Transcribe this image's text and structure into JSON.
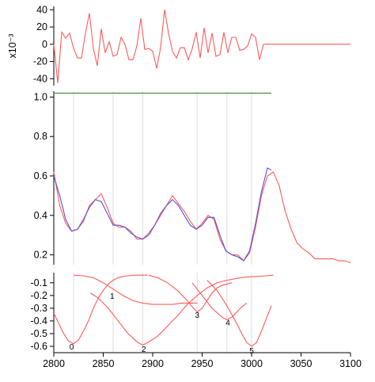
{
  "chart_data": [
    {
      "type": "line",
      "panel": "residual",
      "ylabel": "x10⁻³",
      "ylim": [
        -48,
        44
      ],
      "yticks": [
        -40,
        -20,
        0,
        20,
        40
      ],
      "ytick_labels": [
        "-40",
        "-20",
        "0",
        "20",
        "40"
      ],
      "series": [
        {
          "color": "#ff5a5a",
          "x": [
            2800,
            2804,
            2808,
            2812,
            2816,
            2820,
            2824,
            2828,
            2832,
            2836,
            2840,
            2844,
            2848,
            2852,
            2856,
            2860,
            2864,
            2868,
            2872,
            2876,
            2880,
            2884,
            2888,
            2892,
            2896,
            2900,
            2904,
            2908,
            2912,
            2916,
            2920,
            2924,
            2928,
            2932,
            2936,
            2940,
            2944,
            2948,
            2952,
            2956,
            2960,
            2964,
            2968,
            2972,
            2976,
            2980,
            2984,
            2988,
            2992,
            2996,
            3000,
            3004,
            3008,
            3012,
            3016,
            3020,
            3024,
            3100
          ],
          "y": [
            0,
            -45,
            14,
            7,
            13,
            -5,
            -16,
            -16,
            13,
            36,
            -5,
            -25,
            18,
            -10,
            3,
            -14,
            -12,
            8,
            0,
            -18,
            -18,
            -2,
            30,
            -6,
            -5,
            -8,
            -28,
            -4,
            40,
            13,
            -8,
            -16,
            -4,
            -4,
            -18,
            -5,
            14,
            -16,
            19,
            -10,
            13,
            -14,
            -12,
            14,
            -10,
            8,
            8,
            -7,
            -6,
            -2,
            12,
            8,
            -18,
            0,
            0,
            0,
            0,
            0
          ]
        }
      ]
    },
    {
      "type": "line",
      "panel": "fit",
      "xlim": [
        2800,
        3100
      ],
      "ylim": [
        0.15,
        1.03
      ],
      "yticks": [
        0.2,
        0.4,
        0.6,
        0.8,
        1.0
      ],
      "ytick_labels": [
        "0.2",
        "0.4",
        "0.6",
        "0.8",
        "1.0"
      ],
      "series": [
        {
          "color": "#2a7a2a",
          "x": [
            2800,
            3020
          ],
          "y": [
            1.02,
            1.02
          ]
        },
        {
          "color": "#ff5a5a",
          "x": [
            2800,
            2806,
            2812,
            2818,
            2824,
            2830,
            2836,
            2842,
            2848,
            2854,
            2860,
            2866,
            2872,
            2878,
            2884,
            2890,
            2896,
            2902,
            2908,
            2914,
            2920,
            2926,
            2932,
            2938,
            2944,
            2950,
            2956,
            2962,
            2968,
            2974,
            2980,
            2986,
            2992,
            2998,
            3004,
            3010,
            3016,
            3022,
            3028,
            3034,
            3040,
            3046,
            3052,
            3058,
            3064,
            3070,
            3076,
            3082,
            3088,
            3094,
            3100
          ],
          "y": [
            0.62,
            0.45,
            0.36,
            0.32,
            0.33,
            0.37,
            0.45,
            0.48,
            0.51,
            0.44,
            0.36,
            0.34,
            0.34,
            0.32,
            0.28,
            0.28,
            0.31,
            0.35,
            0.4,
            0.45,
            0.5,
            0.46,
            0.42,
            0.37,
            0.33,
            0.36,
            0.4,
            0.38,
            0.28,
            0.22,
            0.2,
            0.2,
            0.17,
            0.21,
            0.34,
            0.5,
            0.6,
            0.62,
            0.55,
            0.42,
            0.33,
            0.26,
            0.23,
            0.21,
            0.18,
            0.18,
            0.18,
            0.18,
            0.17,
            0.17,
            0.16
          ]
        },
        {
          "color": "#5a4fd6",
          "x": [
            2800,
            2806,
            2812,
            2818,
            2824,
            2830,
            2836,
            2842,
            2848,
            2854,
            2860,
            2866,
            2872,
            2878,
            2884,
            2890,
            2896,
            2902,
            2908,
            2914,
            2920,
            2926,
            2932,
            2938,
            2944,
            2950,
            2956,
            2962,
            2968,
            2974,
            2980,
            2986,
            2992,
            2998,
            3004,
            3010,
            3016,
            3020
          ],
          "y": [
            0.6,
            0.5,
            0.38,
            0.32,
            0.33,
            0.38,
            0.44,
            0.48,
            0.47,
            0.41,
            0.35,
            0.35,
            0.34,
            0.31,
            0.29,
            0.28,
            0.3,
            0.35,
            0.41,
            0.45,
            0.48,
            0.45,
            0.4,
            0.35,
            0.33,
            0.35,
            0.39,
            0.39,
            0.3,
            0.22,
            0.2,
            0.19,
            0.17,
            0.22,
            0.36,
            0.52,
            0.64,
            0.63
          ]
        }
      ]
    },
    {
      "type": "line",
      "panel": "components",
      "ylim": [
        -0.65,
        -0.02
      ],
      "yticks": [
        -0.1,
        -0.2,
        -0.3,
        -0.4,
        -0.5,
        -0.6
      ],
      "ytick_labels": [
        "-0.1",
        "-0.2",
        "-0.3",
        "-0.4",
        "-0.5",
        "-0.6"
      ],
      "xticks": [
        2800,
        2850,
        2900,
        2950,
        3000,
        3050,
        3100
      ],
      "xtick_labels": [
        "2800",
        "2850",
        "2900",
        "2950",
        "3000",
        "3050",
        "3100"
      ],
      "annotations": [
        {
          "text": "0",
          "x": 2818,
          "y": -0.6
        },
        {
          "text": "1",
          "x": 2859,
          "y": -0.2
        },
        {
          "text": "2",
          "x": 2891,
          "y": -0.62
        },
        {
          "text": "3",
          "x": 2945,
          "y": -0.35
        },
        {
          "text": "4",
          "x": 2976,
          "y": -0.41
        },
        {
          "text": "5",
          "x": 3000,
          "y": -0.63
        }
      ],
      "series": [
        {
          "color": "#ff5a5a",
          "x": [
            2800,
            2805,
            2810,
            2815,
            2820,
            2825,
            2830,
            2835,
            2840,
            2845,
            2850,
            2855,
            2860,
            2865,
            2870,
            2875,
            2880,
            2885,
            2890,
            2895
          ],
          "y": [
            -0.34,
            -0.42,
            -0.5,
            -0.56,
            -0.58,
            -0.55,
            -0.48,
            -0.4,
            -0.3,
            -0.22,
            -0.16,
            -0.11,
            -0.08,
            -0.06,
            -0.05,
            -0.045,
            -0.04,
            -0.04,
            -0.04,
            -0.04
          ]
        },
        {
          "color": "#ff5a5a",
          "x": [
            2820,
            2830,
            2840,
            2850,
            2860,
            2870,
            2880,
            2890,
            2900,
            2910,
            2920,
            2930,
            2940,
            2945
          ],
          "y": [
            -0.04,
            -0.045,
            -0.06,
            -0.1,
            -0.15,
            -0.2,
            -0.24,
            -0.26,
            -0.27,
            -0.27,
            -0.27,
            -0.26,
            -0.26,
            -0.26
          ]
        },
        {
          "color": "#ff5a5a",
          "x": [
            2837,
            2845,
            2855,
            2865,
            2875,
            2885,
            2890,
            2895,
            2905,
            2915,
            2925,
            2935,
            2945,
            2955,
            2965,
            2975,
            2985,
            2995,
            3005,
            3015,
            3022
          ],
          "y": [
            -0.18,
            -0.22,
            -0.3,
            -0.4,
            -0.5,
            -0.57,
            -0.59,
            -0.57,
            -0.52,
            -0.44,
            -0.36,
            -0.27,
            -0.2,
            -0.14,
            -0.1,
            -0.08,
            -0.065,
            -0.055,
            -0.05,
            -0.045,
            -0.04
          ]
        },
        {
          "color": "#ff5a5a",
          "x": [
            2896,
            2905,
            2915,
            2925,
            2935,
            2940,
            2945,
            2950,
            2955,
            2960,
            2965,
            2970,
            2975,
            2980
          ],
          "y": [
            -0.04,
            -0.06,
            -0.1,
            -0.16,
            -0.24,
            -0.29,
            -0.33,
            -0.3,
            -0.24,
            -0.18,
            -0.14,
            -0.12,
            -0.11,
            -0.1
          ]
        },
        {
          "color": "#ff5a5a",
          "x": [
            2940,
            2950,
            2960,
            2970,
            2975,
            2980,
            2985,
            2990,
            2995
          ],
          "y": [
            -0.1,
            -0.2,
            -0.3,
            -0.37,
            -0.39,
            -0.37,
            -0.33,
            -0.29,
            -0.26
          ]
        },
        {
          "color": "#ff5a5a",
          "x": [
            2955,
            2965,
            2975,
            2985,
            2990,
            2995,
            3000,
            3005,
            3010,
            3015,
            3020
          ],
          "y": [
            -0.08,
            -0.16,
            -0.28,
            -0.42,
            -0.5,
            -0.57,
            -0.6,
            -0.57,
            -0.48,
            -0.38,
            -0.28
          ]
        }
      ]
    }
  ]
}
